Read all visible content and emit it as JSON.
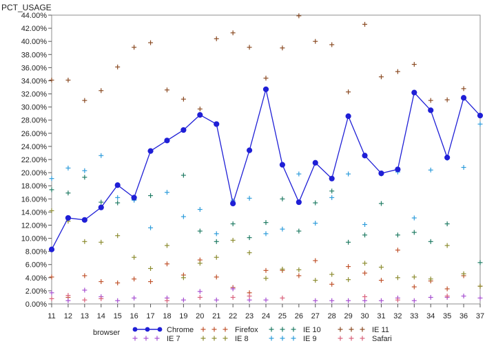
{
  "chart_data": {
    "type": "scatter",
    "ylabel": "PCT_USAGE",
    "xlabel": "",
    "legend_title": "browser",
    "legend_position": "bottom",
    "grid": false,
    "x": [
      11,
      12,
      13,
      14,
      15,
      16,
      17,
      18,
      19,
      20,
      21,
      22,
      23,
      24,
      25,
      26,
      27,
      28,
      29,
      30,
      31,
      32,
      33,
      34,
      35,
      36,
      37
    ],
    "xlim": [
      11,
      37
    ],
    "ylim": [
      0,
      44
    ],
    "y_ticks": [
      0,
      2,
      4,
      6,
      8,
      10,
      12,
      14,
      16,
      18,
      20,
      22,
      24,
      26,
      28,
      30,
      32,
      34,
      36,
      38,
      40,
      42,
      44
    ],
    "y_tick_labels": [
      "0.00%",
      "2.00%",
      "4.00%",
      "6.00%",
      "8.00%",
      "10.00%",
      "12.00%",
      "14.00%",
      "16.00%",
      "18.00%",
      "20.00%",
      "22.00%",
      "24.00%",
      "26.00%",
      "28.00%",
      "30.00%",
      "32.00%",
      "34.00%",
      "36.00%",
      "38.00%",
      "40.00%",
      "42.00%",
      "44.00%"
    ],
    "x_tick_labels": [
      "11",
      "12",
      "13",
      "14",
      "15",
      "16",
      "17",
      "18",
      "19",
      "20",
      "21",
      "22",
      "23",
      "24",
      "25",
      "26",
      "27",
      "28",
      "29",
      "30",
      "31",
      "32",
      "33",
      "34",
      "35",
      "36",
      "37"
    ],
    "series": [
      {
        "name": "Chrome",
        "style": "line-marker",
        "color": "#1f1fd6",
        "values": [
          8.3,
          13.1,
          12.8,
          14.7,
          18.1,
          16.2,
          23.3,
          24.9,
          26.5,
          28.8,
          27.4,
          15.3,
          23.4,
          32.7,
          21.2,
          15.5,
          21.5,
          19.1,
          28.6,
          22.6,
          19.9,
          20.5,
          32.2,
          29.5,
          22.3,
          31.4,
          28.7
        ]
      },
      {
        "name": "Firefox",
        "style": "plus",
        "color": "#c0522b",
        "values": [
          4.1,
          1.0,
          4.3,
          3.4,
          3.2,
          3.8,
          3.4,
          6.1,
          4.4,
          6.7,
          4.1,
          2.5,
          1.7,
          5.1,
          5.1,
          4.3,
          6.6,
          3.0,
          5.7,
          4.7,
          3.6,
          8.2,
          2.6,
          3.5,
          2.3,
          4.3,
          2.7
        ]
      },
      {
        "name": "IE 10",
        "style": "plus",
        "color": "#1f7b63",
        "values": [
          17.4,
          16.9,
          19.3,
          15.5,
          15.4,
          15.9,
          16.5,
          null,
          19.6,
          11.1,
          9.5,
          12.2,
          10.1,
          12.4,
          16.0,
          11.1,
          15.4,
          17.2,
          9.4,
          10.5,
          15.3,
          10.5,
          10.9,
          9.5,
          12.2,
          null,
          6.3
        ]
      },
      {
        "name": "IE 11",
        "style": "plus",
        "color": "#8a4a22",
        "values": [
          34.1,
          34.1,
          31.0,
          32.5,
          36.1,
          39.1,
          39.8,
          32.6,
          31.2,
          29.7,
          40.4,
          41.3,
          39.1,
          34.4,
          39.0,
          43.9,
          40.0,
          39.5,
          32.3,
          42.6,
          34.6,
          35.4,
          36.5,
          31.0,
          31.1,
          32.8,
          null
        ]
      },
      {
        "name": "IE 7",
        "style": "plus",
        "color": "#a64fd1",
        "values": [
          1.7,
          0.5,
          2.1,
          1.1,
          0.5,
          0.9,
          null,
          0.9,
          0.6,
          1.9,
          0.6,
          2.3,
          0.6,
          0.6,
          null,
          null,
          0.5,
          0.5,
          0.5,
          0.5,
          0.5,
          0.9,
          0.5,
          1.0,
          1.0,
          1.2,
          0.9
        ]
      },
      {
        "name": "IE 8",
        "style": "plus",
        "color": "#8c8c30",
        "values": [
          14.2,
          12.6,
          9.5,
          9.4,
          10.4,
          7.1,
          5.4,
          8.9,
          4.0,
          6.2,
          7.1,
          9.7,
          7.8,
          3.9,
          5.3,
          5.2,
          3.6,
          4.5,
          3.7,
          6.2,
          5.6,
          4.0,
          4.1,
          3.8,
          8.9,
          4.6,
          2.7
        ]
      },
      {
        "name": "IE 9",
        "style": "plus",
        "color": "#2d9cdb",
        "values": [
          19.1,
          20.7,
          20.3,
          22.6,
          16.2,
          15.8,
          11.6,
          17.0,
          13.3,
          14.4,
          10.7,
          15.7,
          16.1,
          10.7,
          11.4,
          19.8,
          12.3,
          16.2,
          19.8,
          12.1,
          19.8,
          20.1,
          13.1,
          20.4,
          22.2,
          20.8,
          27.4
        ]
      },
      {
        "name": "Safari",
        "style": "plus",
        "color": "#d9607a",
        "values": [
          0.8,
          1.3,
          0.6,
          0.8,
          null,
          null,
          null,
          0.5,
          null,
          1.0,
          null,
          1.0,
          1.2,
          null,
          0.9,
          null,
          null,
          null,
          null,
          1.1,
          null,
          0.6,
          null,
          null,
          1.2,
          null,
          null
        ]
      }
    ]
  }
}
